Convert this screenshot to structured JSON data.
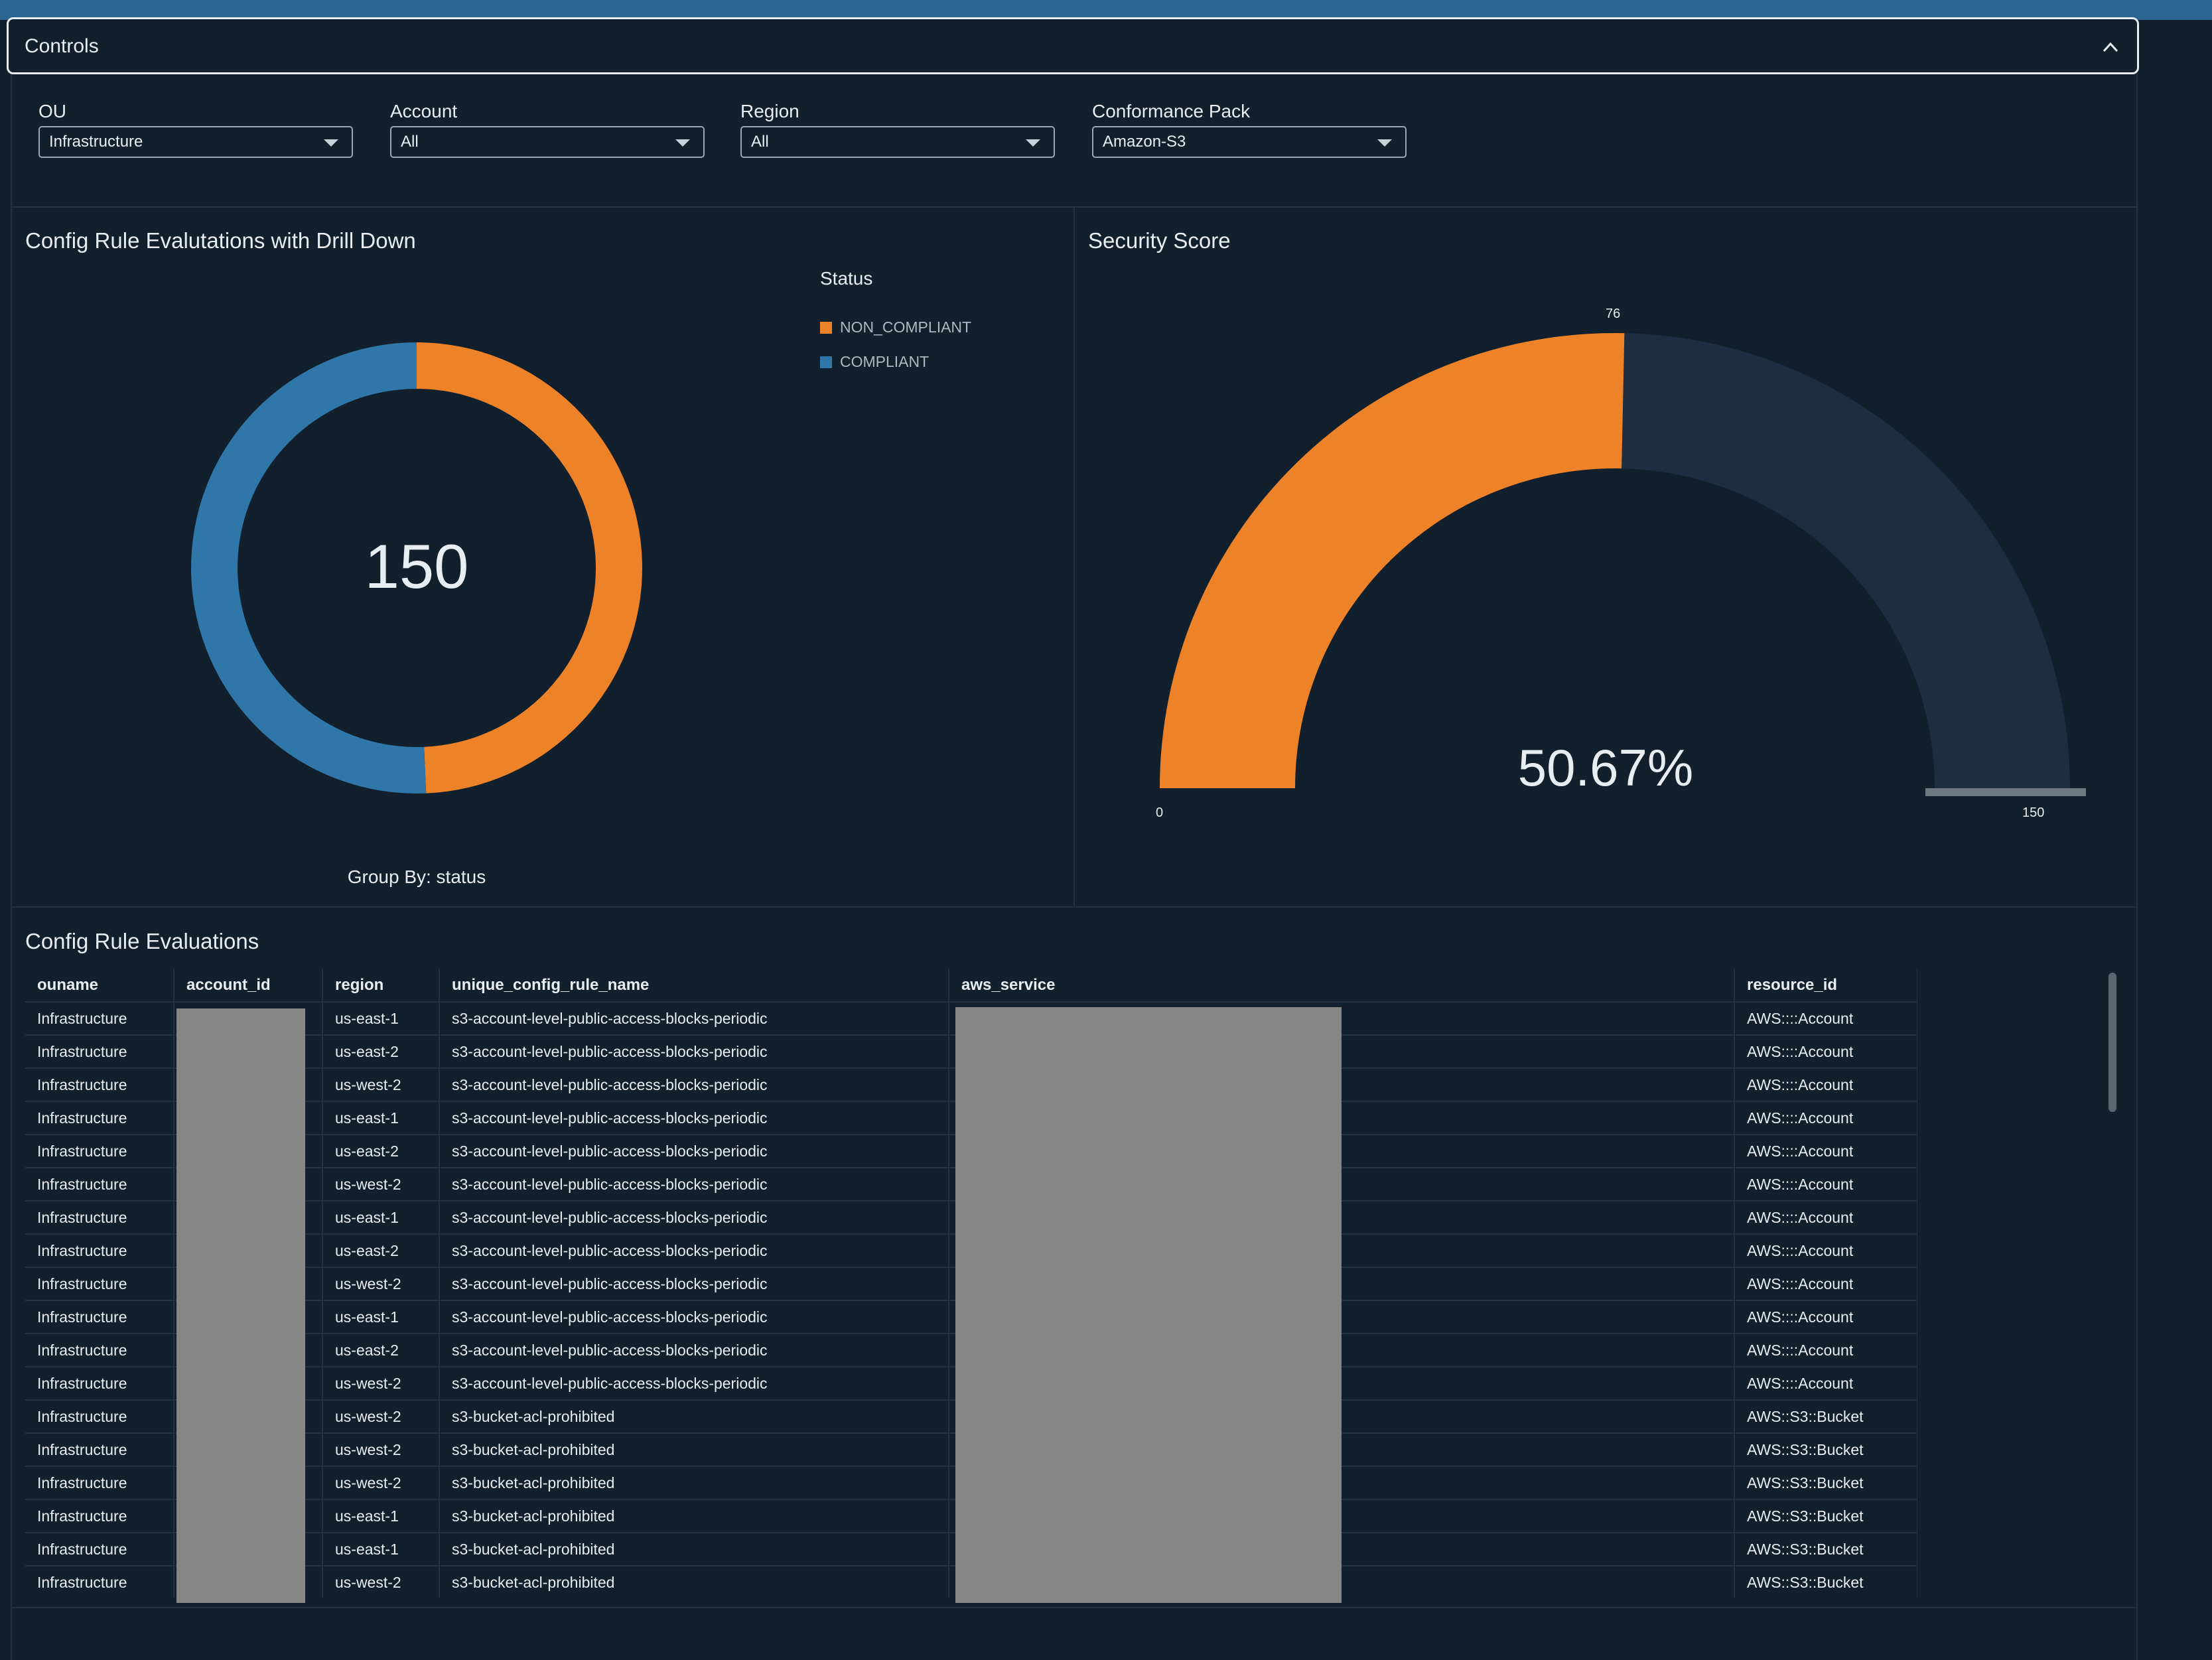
{
  "controls": {
    "title": "Controls"
  },
  "filters": [
    {
      "label": "OU",
      "value": "Infrastructure"
    },
    {
      "label": "Account",
      "value": "All"
    },
    {
      "label": "Region",
      "value": "All"
    },
    {
      "label": "Conformance Pack",
      "value": "Amazon-S3"
    }
  ],
  "donut_panel": {
    "title": "Config Rule Evalutations with Drill Down",
    "center_value": "150",
    "group_by": "Group By: status",
    "legend_title": "Status"
  },
  "gauge_panel": {
    "title": "Security Score",
    "value_text": "50.67%",
    "min_label": "0",
    "max_label": "150",
    "value_label": "76"
  },
  "colors": {
    "non_compliant": "#ee8228",
    "compliant": "#2f77a8",
    "gauge_track": "#1c2e40",
    "background": "#11202c"
  },
  "chart_data": [
    {
      "type": "pie",
      "title": "Config Rule Evalutations with Drill Down",
      "legend_title": "Status",
      "legend_position": "top-right",
      "total": 150,
      "series": [
        {
          "name": "NON_COMPLIANT",
          "value": 74,
          "color": "#ee8228"
        },
        {
          "name": "COMPLIANT",
          "value": 76,
          "color": "#2f77a8"
        }
      ]
    },
    {
      "type": "gauge",
      "title": "Security Score",
      "min": 0,
      "max": 150,
      "value": 76,
      "percent_label": "50.67%"
    }
  ],
  "table": {
    "title": "Config Rule Evaluations",
    "columns": [
      "ouname",
      "account_id",
      "region",
      "unique_config_rule_name",
      "aws_service",
      "resource_id"
    ],
    "rows": [
      [
        "Infrastructure",
        "",
        "us-east-1",
        "s3-account-level-public-access-blocks-periodic",
        "",
        "AWS::::Account"
      ],
      [
        "Infrastructure",
        "",
        "us-east-2",
        "s3-account-level-public-access-blocks-periodic",
        "",
        "AWS::::Account"
      ],
      [
        "Infrastructure",
        "",
        "us-west-2",
        "s3-account-level-public-access-blocks-periodic",
        "",
        "AWS::::Account"
      ],
      [
        "Infrastructure",
        "",
        "us-east-1",
        "s3-account-level-public-access-blocks-periodic",
        "",
        "AWS::::Account"
      ],
      [
        "Infrastructure",
        "",
        "us-east-2",
        "s3-account-level-public-access-blocks-periodic",
        "",
        "AWS::::Account"
      ],
      [
        "Infrastructure",
        "",
        "us-west-2",
        "s3-account-level-public-access-blocks-periodic",
        "",
        "AWS::::Account"
      ],
      [
        "Infrastructure",
        "",
        "us-east-1",
        "s3-account-level-public-access-blocks-periodic",
        "",
        "AWS::::Account"
      ],
      [
        "Infrastructure",
        "",
        "us-east-2",
        "s3-account-level-public-access-blocks-periodic",
        "",
        "AWS::::Account"
      ],
      [
        "Infrastructure",
        "",
        "us-west-2",
        "s3-account-level-public-access-blocks-periodic",
        "",
        "AWS::::Account"
      ],
      [
        "Infrastructure",
        "",
        "us-east-1",
        "s3-account-level-public-access-blocks-periodic",
        "",
        "AWS::::Account"
      ],
      [
        "Infrastructure",
        "",
        "us-east-2",
        "s3-account-level-public-access-blocks-periodic",
        "",
        "AWS::::Account"
      ],
      [
        "Infrastructure",
        "",
        "us-west-2",
        "s3-account-level-public-access-blocks-periodic",
        "",
        "AWS::::Account"
      ],
      [
        "Infrastructure",
        "",
        "us-west-2",
        "s3-bucket-acl-prohibited",
        "",
        "AWS::S3::Bucket"
      ],
      [
        "Infrastructure",
        "",
        "us-west-2",
        "s3-bucket-acl-prohibited",
        "",
        "AWS::S3::Bucket"
      ],
      [
        "Infrastructure",
        "",
        "us-west-2",
        "s3-bucket-acl-prohibited",
        "",
        "AWS::S3::Bucket"
      ],
      [
        "Infrastructure",
        "",
        "us-east-1",
        "s3-bucket-acl-prohibited",
        "",
        "AWS::S3::Bucket"
      ],
      [
        "Infrastructure",
        "",
        "us-east-1",
        "s3-bucket-acl-prohibited",
        "",
        "AWS::S3::Bucket"
      ],
      [
        "Infrastructure",
        "",
        "us-west-2",
        "s3-bucket-acl-prohibited",
        "",
        "AWS::S3::Bucket"
      ]
    ]
  }
}
